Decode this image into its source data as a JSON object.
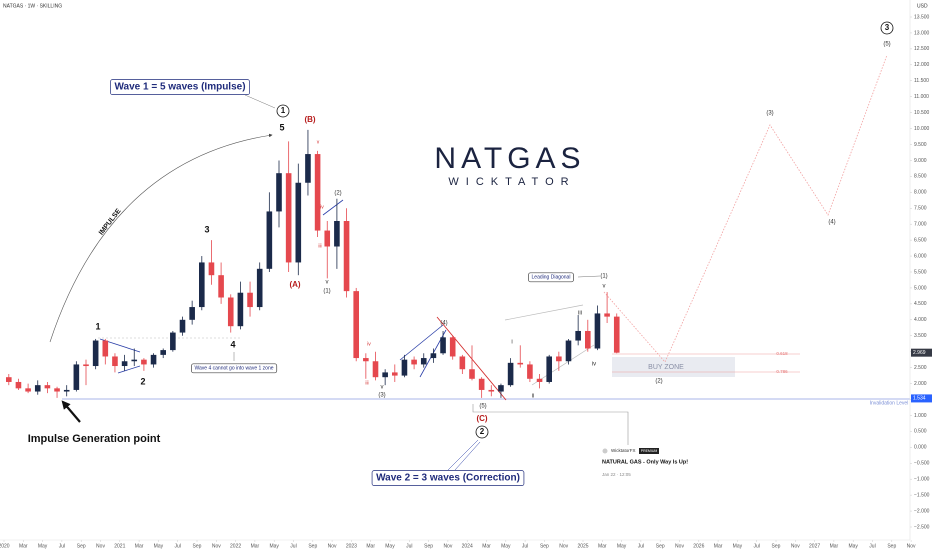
{
  "header": {
    "symbol": "NATGAS · 1W · SKILLING",
    "currency": "USD"
  },
  "logo": {
    "name": "NATGAS",
    "sub": "WICKTATOR"
  },
  "publication": {
    "author": "WicktatorFX",
    "badge": "PREMIUM",
    "title": "NATURAL GAS - Only Way Is Up!",
    "date": "Jan 22 · 12:05"
  },
  "chart_data": {
    "type": "candlestick",
    "up_color": "#1b2a4a",
    "down_color": "#e5484e",
    "grid": false,
    "x": [
      "2020-01",
      "2020-02",
      "2020-03",
      "2020-04",
      "2020-05",
      "2020-06",
      "2020-07",
      "2020-08",
      "2020-09",
      "2020-10",
      "2020-11",
      "2020-12",
      "2021-01",
      "2021-02",
      "2021-03",
      "2021-04",
      "2021-05",
      "2021-06",
      "2021-07",
      "2021-08",
      "2021-09",
      "2021-10",
      "2021-11",
      "2021-12",
      "2022-01",
      "2022-02",
      "2022-03",
      "2022-04",
      "2022-05",
      "2022-06",
      "2022-07",
      "2022-08",
      "2022-09",
      "2022-10",
      "2022-11",
      "2022-12",
      "2023-01",
      "2023-02",
      "2023-03",
      "2023-04",
      "2023-05",
      "2023-06",
      "2023-07",
      "2023-08",
      "2023-09",
      "2023-10",
      "2023-11",
      "2023-12",
      "2024-01",
      "2024-02",
      "2024-03",
      "2024-04",
      "2024-05",
      "2024-06",
      "2024-07",
      "2024-08",
      "2024-09",
      "2024-10",
      "2024-11",
      "2024-12",
      "2025-01",
      "2025-02",
      "2025-03",
      "2025-04"
    ],
    "open": [
      2.2,
      2.05,
      1.85,
      1.75,
      1.95,
      1.85,
      1.75,
      1.8,
      2.6,
      2.55,
      3.35,
      2.85,
      2.55,
      2.7,
      2.75,
      2.6,
      2.9,
      3.05,
      3.6,
      4.0,
      4.4,
      5.8,
      5.4,
      4.7,
      3.8,
      4.85,
      4.4,
      5.6,
      7.4,
      8.6,
      5.8,
      8.3,
      9.2,
      6.8,
      6.3,
      7.1,
      4.9,
      2.8,
      2.7,
      2.2,
      2.35,
      2.25,
      2.75,
      2.6,
      2.8,
      2.95,
      3.45,
      2.85,
      2.45,
      2.15,
      1.8,
      1.75,
      1.95,
      2.65,
      2.6,
      2.15,
      2.05,
      2.85,
      2.7,
      3.35,
      3.65,
      3.1,
      4.2,
      4.1
    ],
    "high": [
      2.3,
      2.15,
      2.0,
      2.1,
      2.05,
      1.9,
      1.95,
      2.7,
      2.75,
      3.4,
      3.4,
      2.95,
      2.9,
      3.1,
      2.8,
      2.95,
      3.1,
      3.65,
      4.1,
      4.6,
      6.0,
      6.5,
      5.8,
      4.8,
      5.2,
      5.2,
      5.8,
      8.0,
      9.0,
      9.6,
      8.9,
      9.96,
      9.3,
      7.1,
      7.8,
      7.5,
      5.0,
      2.95,
      3.0,
      2.45,
      2.6,
      2.9,
      2.85,
      2.95,
      3.1,
      3.65,
      3.5,
      2.9,
      3.2,
      2.2,
      1.95,
      2.0,
      2.8,
      3.2,
      2.7,
      2.3,
      2.9,
      3.0,
      3.4,
      4.15,
      4.0,
      4.45,
      4.87,
      4.2
    ],
    "low": [
      1.95,
      1.8,
      1.7,
      1.65,
      1.7,
      1.55,
      1.6,
      1.75,
      1.95,
      2.45,
      2.6,
      2.35,
      2.4,
      2.55,
      2.4,
      2.5,
      2.8,
      3.0,
      3.5,
      3.85,
      4.3,
      5.1,
      4.5,
      3.6,
      3.7,
      4.1,
      4.3,
      5.5,
      6.9,
      5.5,
      5.4,
      7.9,
      6.6,
      5.3,
      5.6,
      4.7,
      2.7,
      2.15,
      2.1,
      1.95,
      2.05,
      2.2,
      2.45,
      2.5,
      2.65,
      2.9,
      2.75,
      2.3,
      2.1,
      1.55,
      1.6,
      1.55,
      1.9,
      2.5,
      2.05,
      1.85,
      2.0,
      2.4,
      2.6,
      3.2,
      3.0,
      3.05,
      3.9,
      2.95
    ],
    "close": [
      2.05,
      1.85,
      1.75,
      1.95,
      1.85,
      1.75,
      1.8,
      2.6,
      2.55,
      3.35,
      2.85,
      2.55,
      2.7,
      2.75,
      2.6,
      2.9,
      3.05,
      3.6,
      4.0,
      4.4,
      5.8,
      5.4,
      4.7,
      3.8,
      4.85,
      4.4,
      5.6,
      7.4,
      8.6,
      5.8,
      8.3,
      9.2,
      6.8,
      6.3,
      7.1,
      4.9,
      2.8,
      2.7,
      2.2,
      2.35,
      2.25,
      2.75,
      2.6,
      2.8,
      2.95,
      3.45,
      2.85,
      2.45,
      2.15,
      1.8,
      1.75,
      1.95,
      2.65,
      2.6,
      2.15,
      2.05,
      2.85,
      2.7,
      3.35,
      3.65,
      3.1,
      4.2,
      4.1,
      2.969
    ],
    "ylim": [
      -2.5,
      13.5
    ],
    "yticks": [
      {
        "value": -2.5,
        "label": "−2.500"
      },
      {
        "value": -2,
        "label": "−2.000"
      },
      {
        "value": -1.5,
        "label": "−1.500"
      },
      {
        "value": -1,
        "label": "−1.000"
      },
      {
        "value": -0.5,
        "label": "−0.500"
      },
      {
        "value": 0,
        "label": "0.000"
      },
      {
        "value": 0.5,
        "label": "0.500"
      },
      {
        "value": 1,
        "label": "1.000"
      },
      {
        "value": 1.5,
        "label": "1.500"
      },
      {
        "value": 2,
        "label": "2.000"
      },
      {
        "value": 2.5,
        "label": "2.500"
      },
      {
        "value": 3,
        "label": "3.000"
      },
      {
        "value": 3.5,
        "label": "3.500"
      },
      {
        "value": 4,
        "label": "4.000"
      },
      {
        "value": 4.5,
        "label": "4.500"
      },
      {
        "value": 5,
        "label": "5.000"
      },
      {
        "value": 5.5,
        "label": "5.500"
      },
      {
        "value": 6,
        "label": "6.000"
      },
      {
        "value": 6.5,
        "label": "6.500"
      },
      {
        "value": 7,
        "label": "7.000"
      },
      {
        "value": 7.5,
        "label": "7.500"
      },
      {
        "value": 8,
        "label": "8.000"
      },
      {
        "value": 8.5,
        "label": "8.500"
      },
      {
        "value": 9,
        "label": "9.000"
      },
      {
        "value": 9.5,
        "label": "9.500"
      },
      {
        "value": 10,
        "label": "10.000"
      },
      {
        "value": 10.5,
        "label": "10.500"
      },
      {
        "value": 11,
        "label": "11.000"
      },
      {
        "value": 11.5,
        "label": "11.500"
      },
      {
        "value": 12,
        "label": "12.000"
      },
      {
        "value": 12.5,
        "label": "12.500"
      },
      {
        "value": 13,
        "label": "13.000"
      },
      {
        "value": 13.5,
        "label": "13.500"
      }
    ],
    "xticks": [
      {
        "value": "2020-01",
        "label": "2020"
      },
      {
        "value": "2020-03",
        "label": "Mar"
      },
      {
        "value": "2020-05",
        "label": "May"
      },
      {
        "value": "2020-07",
        "label": "Jul"
      },
      {
        "value": "2020-09",
        "label": "Sep"
      },
      {
        "value": "2020-11",
        "label": "Nov"
      },
      {
        "value": "2021-01",
        "label": "2021"
      },
      {
        "value": "2021-03",
        "label": "Mar"
      },
      {
        "value": "2021-05",
        "label": "May"
      },
      {
        "value": "2021-07",
        "label": "Jul"
      },
      {
        "value": "2021-09",
        "label": "Sep"
      },
      {
        "value": "2021-11",
        "label": "Nov"
      },
      {
        "value": "2022-01",
        "label": "2022"
      },
      {
        "value": "2022-03",
        "label": "Mar"
      },
      {
        "value": "2022-05",
        "label": "May"
      },
      {
        "value": "2022-07",
        "label": "Jul"
      },
      {
        "value": "2022-09",
        "label": "Sep"
      },
      {
        "value": "2022-11",
        "label": "Nov"
      },
      {
        "value": "2023-01",
        "label": "2023"
      },
      {
        "value": "2023-03",
        "label": "Mar"
      },
      {
        "value": "2023-05",
        "label": "May"
      },
      {
        "value": "2023-07",
        "label": "Jul"
      },
      {
        "value": "2023-09",
        "label": "Sep"
      },
      {
        "value": "2023-11",
        "label": "Nov"
      },
      {
        "value": "2024-01",
        "label": "2024"
      },
      {
        "value": "2024-03",
        "label": "Mar"
      },
      {
        "value": "2024-05",
        "label": "May"
      },
      {
        "value": "2024-07",
        "label": "Jul"
      },
      {
        "value": "2024-09",
        "label": "Sep"
      },
      {
        "value": "2024-11",
        "label": "Nov"
      },
      {
        "value": "2025-01",
        "label": "2025"
      },
      {
        "value": "2025-03",
        "label": "Mar"
      },
      {
        "value": "2025-05",
        "label": "May"
      },
      {
        "value": "2025-07",
        "label": "Jul"
      },
      {
        "value": "2025-09",
        "label": "Sep"
      },
      {
        "value": "2025-11",
        "label": "Nov"
      },
      {
        "value": "2026-01",
        "label": "2026"
      },
      {
        "value": "2026-03",
        "label": "Mar"
      },
      {
        "value": "2026-05",
        "label": "May"
      },
      {
        "value": "2026-07",
        "label": "Jul"
      },
      {
        "value": "2026-09",
        "label": "Sep"
      },
      {
        "value": "2026-11",
        "label": "Nov"
      },
      {
        "value": "2027-01",
        "label": "2027"
      },
      {
        "value": "2027-03",
        "label": "Mar"
      },
      {
        "value": "2027-05",
        "label": "May"
      },
      {
        "value": "2027-07",
        "label": "Jul"
      },
      {
        "value": "2027-09",
        "label": "Sep"
      },
      {
        "value": "2027-11",
        "label": "Nov"
      }
    ],
    "price_labels": [
      2.969,
      1.534
    ],
    "annotations": [
      "Wave 1 = 5 waves (Impulse)",
      "1",
      "5",
      "(B)",
      "IMPULSE",
      "3",
      "1",
      "2",
      "4",
      "Wave 4 cannot go into wave 1 zone",
      "Impulse Generation point",
      "(A)",
      "v",
      "iv",
      "iii",
      "v",
      "(1)",
      "(2)",
      "iv",
      "iii",
      "v",
      "(3)",
      "(4)",
      "(5)",
      "(C)",
      "2",
      "Wave 2 = 3 waves (Correction)",
      "i",
      "ii",
      "iii",
      "iv",
      "v",
      "(1)",
      "Leading Diagonal",
      "BUY ZONE",
      "0.618",
      "0.786",
      "(2)",
      "(3)",
      "(4)",
      "(5)",
      "3",
      "Invalidation Level"
    ]
  }
}
